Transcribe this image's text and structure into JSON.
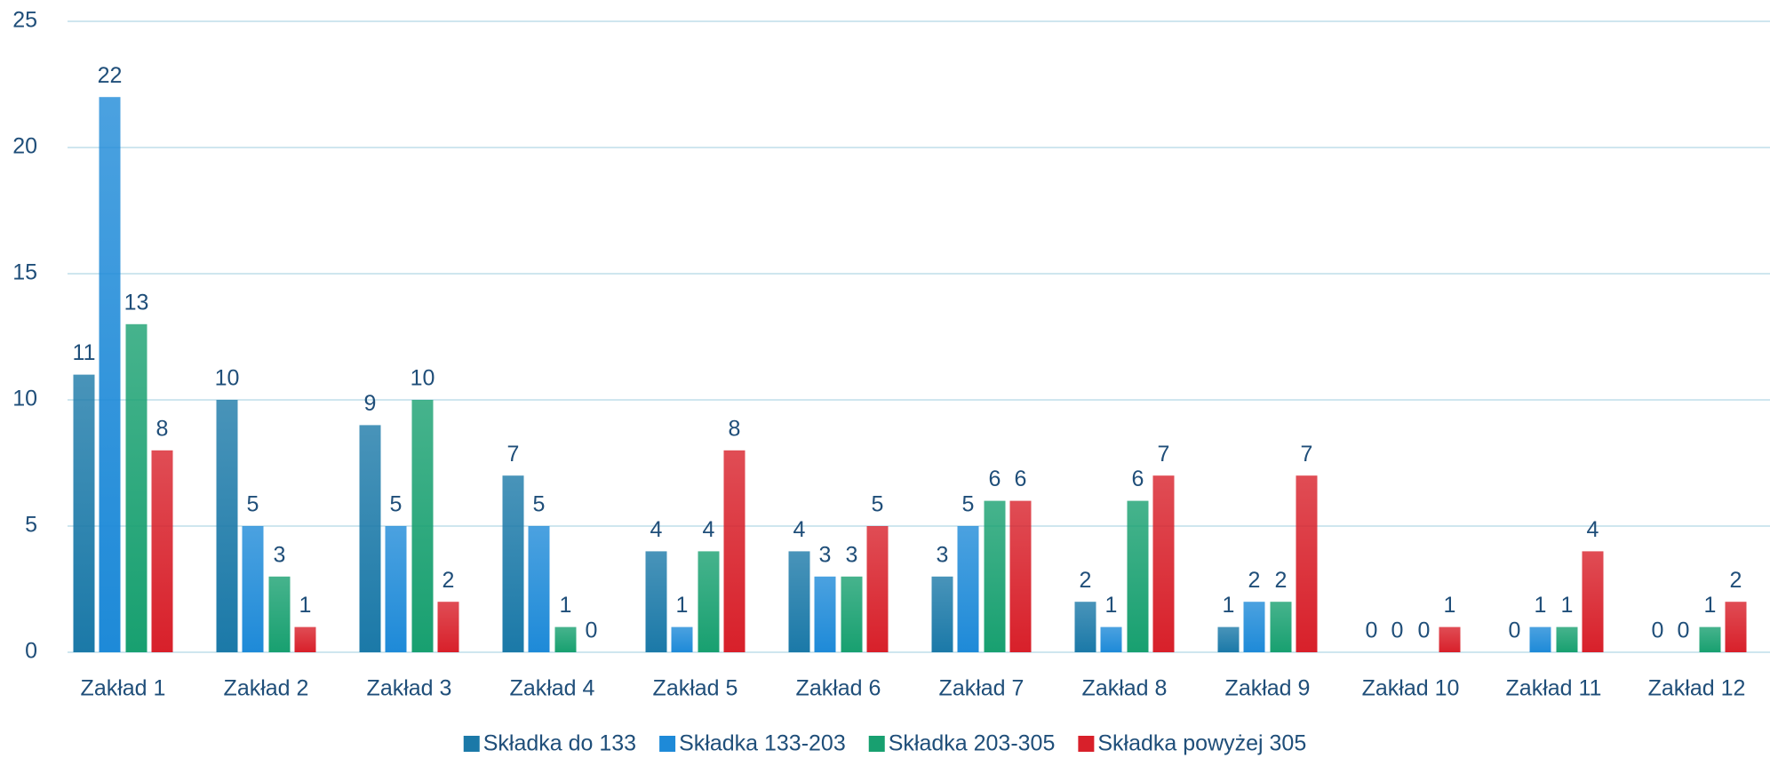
{
  "chart_data": {
    "type": "bar",
    "categories": [
      "Zakład 1",
      "Zakład 2",
      "Zakład 3",
      "Zakład 4",
      "Zakład 5",
      "Zakład 6",
      "Zakład 7",
      "Zakład 8",
      "Zakład 9",
      "Zakład 10",
      "Zakład 11",
      "Zakład 12"
    ],
    "series": [
      {
        "name": "Składka do 133",
        "color": "#1b79a8",
        "values": [
          11,
          10,
          9,
          7,
          4,
          4,
          3,
          2,
          1,
          0,
          0,
          0
        ]
      },
      {
        "name": "Składka 133-203",
        "color": "#1e8ad8",
        "values": [
          22,
          5,
          5,
          5,
          1,
          3,
          5,
          1,
          2,
          0,
          1,
          0
        ]
      },
      {
        "name": "Składka 203-305",
        "color": "#18a070",
        "values": [
          13,
          3,
          10,
          1,
          4,
          3,
          6,
          6,
          2,
          0,
          1,
          1
        ]
      },
      {
        "name": "Składka powyżej 305",
        "color": "#d8202a",
        "values": [
          8,
          1,
          2,
          0,
          8,
          5,
          6,
          7,
          7,
          1,
          4,
          2
        ]
      }
    ],
    "ylim": [
      0,
      25
    ],
    "yticks": [
      0,
      5,
      10,
      15,
      20,
      25
    ],
    "grid": true,
    "legend": "bottom"
  }
}
